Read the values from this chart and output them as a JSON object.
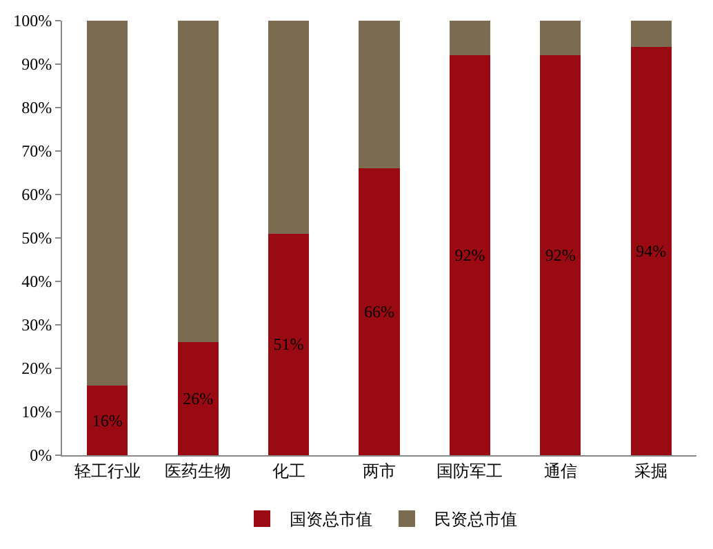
{
  "chart_data": {
    "type": "bar",
    "stacked": true,
    "categories": [
      "轻工行业",
      "医药生物",
      "化工",
      "两市",
      "国防军工",
      "通信",
      "采掘"
    ],
    "series": [
      {
        "name": "国资总市值",
        "color": "#990a12",
        "values": [
          16,
          26,
          51,
          66,
          92,
          92,
          94
        ],
        "value_labels": [
          "16%",
          "26%",
          "51%",
          "66%",
          "92%",
          "92%",
          "94%"
        ]
      },
      {
        "name": "民资总市值",
        "color": "#7b6b51",
        "values": [
          84,
          74,
          49,
          34,
          8,
          8,
          6
        ]
      }
    ],
    "ylim": [
      0,
      100
    ],
    "yticks": [
      {
        "value": 0,
        "label": "0%"
      },
      {
        "value": 10,
        "label": "10%"
      },
      {
        "value": 20,
        "label": "20%"
      },
      {
        "value": 30,
        "label": "30%"
      },
      {
        "value": 40,
        "label": "40%"
      },
      {
        "value": 50,
        "label": "50%"
      },
      {
        "value": 60,
        "label": "60%"
      },
      {
        "value": 70,
        "label": "70%"
      },
      {
        "value": 80,
        "label": "80%"
      },
      {
        "value": 90,
        "label": "90%"
      },
      {
        "value": 100,
        "label": "100%"
      }
    ],
    "legend": "bottom"
  }
}
